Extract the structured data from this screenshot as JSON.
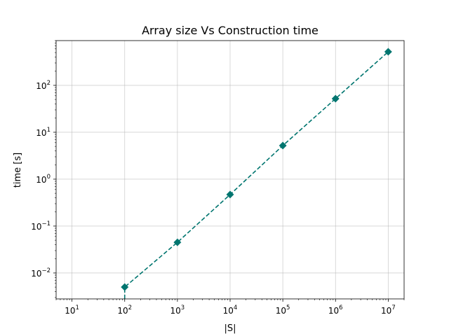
{
  "chart_data": {
    "type": "line",
    "title": "Array size Vs Construction time",
    "xlabel": "|S|",
    "ylabel": "time [s]",
    "xscale": "log",
    "yscale": "log",
    "xlim": [
      5,
      20000000
    ],
    "ylim": [
      0.0028,
      900
    ],
    "xticks": [
      {
        "value": 10,
        "base": "10",
        "exp": "1"
      },
      {
        "value": 100,
        "base": "10",
        "exp": "2"
      },
      {
        "value": 1000,
        "base": "10",
        "exp": "3"
      },
      {
        "value": 10000,
        "base": "10",
        "exp": "4"
      },
      {
        "value": 100000,
        "base": "10",
        "exp": "5"
      },
      {
        "value": 1000000,
        "base": "10",
        "exp": "6"
      },
      {
        "value": 10000000,
        "base": "10",
        "exp": "7"
      }
    ],
    "yticks": [
      {
        "value": 0.01,
        "base": "10",
        "exp": "−2"
      },
      {
        "value": 0.1,
        "base": "10",
        "exp": "−1"
      },
      {
        "value": 1,
        "base": "10",
        "exp": "0"
      },
      {
        "value": 10,
        "base": "10",
        "exp": "1"
      },
      {
        "value": 100,
        "base": "10",
        "exp": "2"
      }
    ],
    "grid": true,
    "series": [
      {
        "color": "#00756f",
        "linestyle": "dashed",
        "marker": "diamond",
        "x": [
          100,
          1000,
          10000,
          100000,
          1000000,
          10000000
        ],
        "y": [
          0.005,
          0.045,
          0.47,
          5.2,
          52,
          520
        ]
      }
    ]
  }
}
